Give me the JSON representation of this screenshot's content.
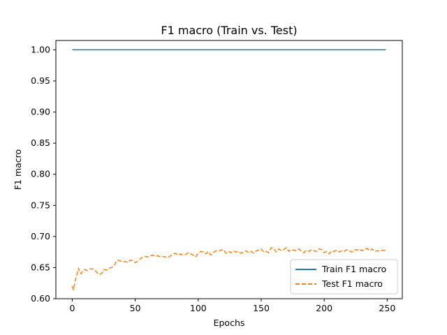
{
  "chart_data": {
    "type": "line",
    "title": "F1 macro (Train vs. Test)",
    "xlabel": "Epochs",
    "ylabel": "F1 macro",
    "xlim": [
      -13,
      262
    ],
    "ylim": [
      0.6,
      1.015
    ],
    "x_ticks": [
      0,
      50,
      100,
      150,
      200,
      250
    ],
    "x_tick_labels": [
      "0",
      "50",
      "100",
      "150",
      "200",
      "250"
    ],
    "y_ticks": [
      0.6,
      0.65,
      0.7,
      0.75,
      0.8,
      0.85,
      0.9,
      0.95,
      1.0
    ],
    "y_tick_labels": [
      "0.60",
      "0.65",
      "0.70",
      "0.75",
      "0.80",
      "0.85",
      "0.90",
      "0.95",
      "1.00"
    ],
    "grid": false,
    "legend_position": "lower-right",
    "series": [
      {
        "name": "Train F1 macro",
        "color": "#1f77b4",
        "linestyle": "solid",
        "points": [
          [
            0,
            1.0
          ],
          [
            249,
            1.0
          ]
        ]
      },
      {
        "name": "Test F1 macro",
        "color": "#ff7f0e",
        "linestyle": "dashed",
        "points": [
          [
            0,
            0.62
          ],
          [
            1,
            0.614
          ],
          [
            2,
            0.626
          ],
          [
            3,
            0.634
          ],
          [
            4,
            0.641
          ],
          [
            5,
            0.649
          ],
          [
            6,
            0.642
          ],
          [
            7,
            0.64
          ],
          [
            8,
            0.644
          ],
          [
            9,
            0.646
          ],
          [
            10,
            0.647
          ],
          [
            12,
            0.645
          ],
          [
            14,
            0.648
          ],
          [
            16,
            0.648
          ],
          [
            18,
            0.646
          ],
          [
            20,
            0.641
          ],
          [
            22,
            0.639
          ],
          [
            24,
            0.642
          ],
          [
            25,
            0.647
          ],
          [
            27,
            0.646
          ],
          [
            29,
            0.649
          ],
          [
            31,
            0.65
          ],
          [
            33,
            0.652
          ],
          [
            35,
            0.66
          ],
          [
            36,
            0.662
          ],
          [
            38,
            0.661
          ],
          [
            40,
            0.659
          ],
          [
            42,
            0.66
          ],
          [
            44,
            0.658
          ],
          [
            46,
            0.662
          ],
          [
            48,
            0.661
          ],
          [
            50,
            0.658
          ],
          [
            52,
            0.66
          ],
          [
            54,
            0.664
          ],
          [
            56,
            0.667
          ],
          [
            58,
            0.668
          ],
          [
            60,
            0.667
          ],
          [
            62,
            0.669
          ],
          [
            64,
            0.67
          ],
          [
            66,
            0.668
          ],
          [
            68,
            0.669
          ],
          [
            70,
            0.667
          ],
          [
            72,
            0.668
          ],
          [
            74,
            0.667
          ],
          [
            76,
            0.666
          ],
          [
            78,
            0.669
          ],
          [
            80,
            0.671
          ],
          [
            82,
            0.673
          ],
          [
            84,
            0.67
          ],
          [
            86,
            0.672
          ],
          [
            88,
            0.67
          ],
          [
            90,
            0.671
          ],
          [
            92,
            0.674
          ],
          [
            94,
            0.672
          ],
          [
            96,
            0.67
          ],
          [
            98,
            0.667
          ],
          [
            100,
            0.673
          ],
          [
            102,
            0.676
          ],
          [
            104,
            0.675
          ],
          [
            106,
            0.672
          ],
          [
            108,
            0.676
          ],
          [
            110,
            0.67
          ],
          [
            112,
            0.674
          ],
          [
            114,
            0.677
          ],
          [
            116,
            0.676
          ],
          [
            118,
            0.678
          ],
          [
            120,
            0.679
          ],
          [
            122,
            0.673
          ],
          [
            124,
            0.676
          ],
          [
            126,
            0.674
          ],
          [
            128,
            0.677
          ],
          [
            130,
            0.675
          ],
          [
            132,
            0.676
          ],
          [
            134,
            0.673
          ],
          [
            136,
            0.675
          ],
          [
            138,
            0.677
          ],
          [
            140,
            0.674
          ],
          [
            142,
            0.676
          ],
          [
            144,
            0.673
          ],
          [
            146,
            0.677
          ],
          [
            148,
            0.678
          ],
          [
            150,
            0.68
          ],
          [
            152,
            0.675
          ],
          [
            154,
            0.676
          ],
          [
            156,
            0.674
          ],
          [
            158,
            0.682
          ],
          [
            160,
            0.681
          ],
          [
            162,
            0.675
          ],
          [
            164,
            0.68
          ],
          [
            166,
            0.677
          ],
          [
            168,
            0.679
          ],
          [
            170,
            0.682
          ],
          [
            172,
            0.676
          ],
          [
            174,
            0.679
          ],
          [
            176,
            0.678
          ],
          [
            178,
            0.677
          ],
          [
            180,
            0.68
          ],
          [
            182,
            0.676
          ],
          [
            184,
            0.674
          ],
          [
            186,
            0.678
          ],
          [
            188,
            0.676
          ],
          [
            190,
            0.679
          ],
          [
            192,
            0.677
          ],
          [
            194,
            0.676
          ],
          [
            196,
            0.68
          ],
          [
            198,
            0.679
          ],
          [
            200,
            0.674
          ],
          [
            202,
            0.676
          ],
          [
            204,
            0.672
          ],
          [
            206,
            0.677
          ],
          [
            208,
            0.676
          ],
          [
            210,
            0.678
          ],
          [
            212,
            0.675
          ],
          [
            214,
            0.677
          ],
          [
            216,
            0.676
          ],
          [
            218,
            0.679
          ],
          [
            220,
            0.677
          ],
          [
            222,
            0.675
          ],
          [
            224,
            0.679
          ],
          [
            226,
            0.678
          ],
          [
            228,
            0.68
          ],
          [
            230,
            0.677
          ],
          [
            232,
            0.679
          ],
          [
            234,
            0.681
          ],
          [
            236,
            0.677
          ],
          [
            238,
            0.68
          ],
          [
            240,
            0.676
          ],
          [
            242,
            0.677
          ],
          [
            244,
            0.676
          ],
          [
            246,
            0.678
          ],
          [
            249,
            0.677
          ]
        ]
      }
    ]
  }
}
